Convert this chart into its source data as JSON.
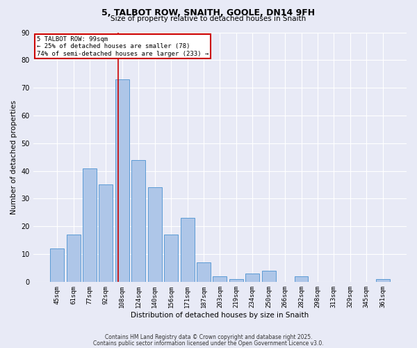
{
  "title1": "5, TALBOT ROW, SNAITH, GOOLE, DN14 9FH",
  "title2": "Size of property relative to detached houses in Snaith",
  "xlabel": "Distribution of detached houses by size in Snaith",
  "ylabel": "Number of detached properties",
  "categories": [
    "45sqm",
    "61sqm",
    "77sqm",
    "92sqm",
    "108sqm",
    "124sqm",
    "140sqm",
    "156sqm",
    "171sqm",
    "187sqm",
    "203sqm",
    "219sqm",
    "234sqm",
    "250sqm",
    "266sqm",
    "282sqm",
    "298sqm",
    "313sqm",
    "329sqm",
    "345sqm",
    "361sqm"
  ],
  "values": [
    12,
    17,
    41,
    35,
    73,
    44,
    34,
    17,
    23,
    7,
    2,
    1,
    3,
    4,
    0,
    2,
    0,
    0,
    0,
    0,
    1
  ],
  "bar_color": "#aec6e8",
  "bar_edge_color": "#5b9bd5",
  "background_color": "#e8eaf6",
  "grid_color": "#ffffff",
  "red_line_x": 3.75,
  "annotation_text": "5 TALBOT ROW: 99sqm\n← 25% of detached houses are smaller (78)\n74% of semi-detached houses are larger (233) →",
  "annotation_box_color": "#ffffff",
  "annotation_box_edge": "#cc0000",
  "ylim": [
    0,
    90
  ],
  "yticks": [
    0,
    10,
    20,
    30,
    40,
    50,
    60,
    70,
    80,
    90
  ],
  "footer1": "Contains HM Land Registry data © Crown copyright and database right 2025.",
  "footer2": "Contains public sector information licensed under the Open Government Licence v3.0."
}
